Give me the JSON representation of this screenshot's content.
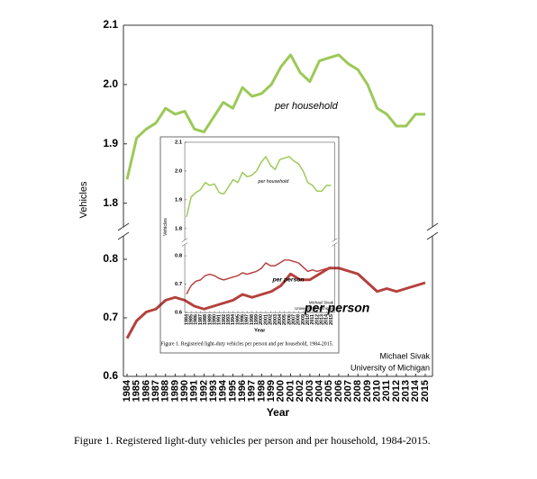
{
  "chart_data": {
    "type": "line",
    "y_label": "Vehicles",
    "x_label": "Year",
    "categories": [
      "1984",
      "1985",
      "1986",
      "1987",
      "1988",
      "1989",
      "1990",
      "1991",
      "1992",
      "1993",
      "1994",
      "1995",
      "1996",
      "1997",
      "1998",
      "1999",
      "2000",
      "2001",
      "2002",
      "2003",
      "2004",
      "2005",
      "2006",
      "2007",
      "2008",
      "2009",
      "2010",
      "2011",
      "2012",
      "2013",
      "2014",
      "2015"
    ],
    "series": [
      {
        "name": "per household",
        "color": "#9bc957",
        "values": [
          1.84,
          1.91,
          1.925,
          1.935,
          1.96,
          1.95,
          1.955,
          1.925,
          1.92,
          1.945,
          1.97,
          1.96,
          1.995,
          1.98,
          1.985,
          2.0,
          2.03,
          2.05,
          2.02,
          2.005,
          2.04,
          2.045,
          2.05,
          2.035,
          2.025,
          2.0,
          1.96,
          1.95,
          1.93,
          1.93,
          1.95,
          1.95
        ],
        "ylim": [
          1.76,
          2.1
        ],
        "yticks": [
          1.8,
          1.9,
          {
            "value": 2,
            "label": "2.0"
          },
          2.1
        ]
      },
      {
        "name": "per person",
        "color": "#b5403d",
        "values": [
          0.665,
          0.695,
          0.71,
          0.715,
          0.73,
          0.735,
          0.73,
          0.72,
          0.715,
          0.72,
          0.725,
          0.73,
          0.74,
          0.735,
          0.74,
          0.745,
          0.755,
          0.775,
          0.765,
          0.765,
          0.775,
          0.785,
          0.785,
          0.78,
          0.775,
          0.76,
          0.745,
          0.75,
          0.745,
          0.75,
          0.755,
          0.76
        ],
        "ylim": [
          0.6,
          0.84
        ],
        "yticks": [
          0.6,
          0.7,
          0.8
        ]
      }
    ],
    "credit": [
      "Michael Sivak",
      "University of Michigan"
    ],
    "caption": "Figure 1.  Registered light-duty vehicles per person and per household, 1984-2015."
  }
}
